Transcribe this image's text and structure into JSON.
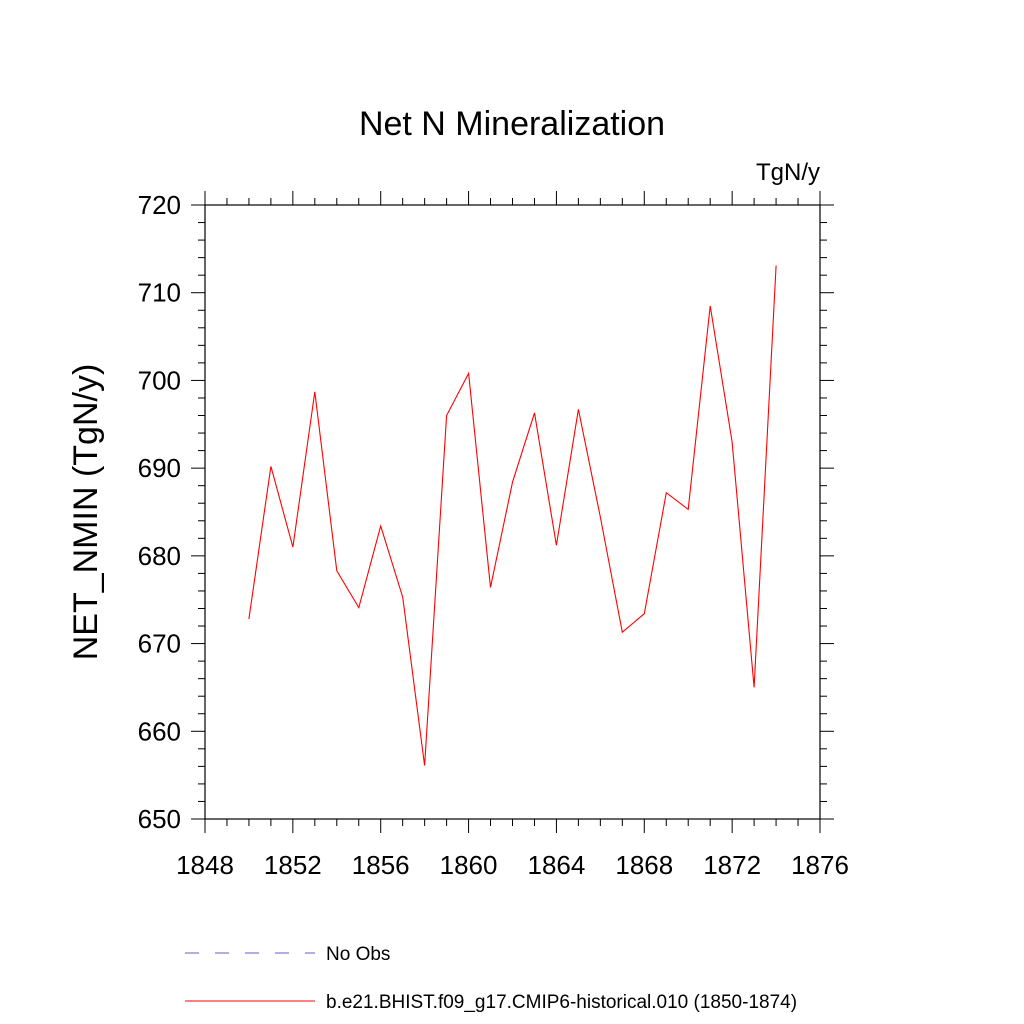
{
  "chart_data": {
    "type": "line",
    "title": "Net N Mineralization",
    "units_label": "TgN/y",
    "ylabel": "NET_NMIN  (TgN/y)",
    "xlabel": "",
    "xlim": [
      1848,
      1876
    ],
    "ylim": [
      650,
      720
    ],
    "x_ticks": [
      "1848",
      "1852",
      "1856",
      "1860",
      "1864",
      "1868",
      "1872",
      "1876"
    ],
    "y_ticks": [
      "650",
      "660",
      "670",
      "680",
      "690",
      "700",
      "710",
      "720"
    ],
    "grid": false,
    "legend_position": "bottom",
    "series": [
      {
        "name": "b.e21.BHIST.f09_g17.CMIP6-historical.010 (1850-1874)",
        "color": "#ff0000",
        "style": "solid",
        "x": [
          1850,
          1851,
          1852,
          1853,
          1854,
          1855,
          1856,
          1857,
          1858,
          1859,
          1860,
          1861,
          1862,
          1863,
          1864,
          1865,
          1866,
          1867,
          1868,
          1869,
          1870,
          1871,
          1872,
          1873,
          1874
        ],
        "y": [
          672.8,
          690.2,
          681.0,
          698.7,
          678.3,
          674.1,
          683.4,
          675.3,
          656.1,
          696.0,
          700.8,
          676.4,
          688.4,
          696.3,
          681.2,
          696.7,
          684.4,
          671.3,
          673.4,
          687.2,
          685.3,
          708.5,
          693.0,
          665.0,
          713.1
        ]
      },
      {
        "name": "No Obs",
        "color": "#6a5acd",
        "style": "dashed",
        "x": [],
        "y": []
      }
    ]
  }
}
